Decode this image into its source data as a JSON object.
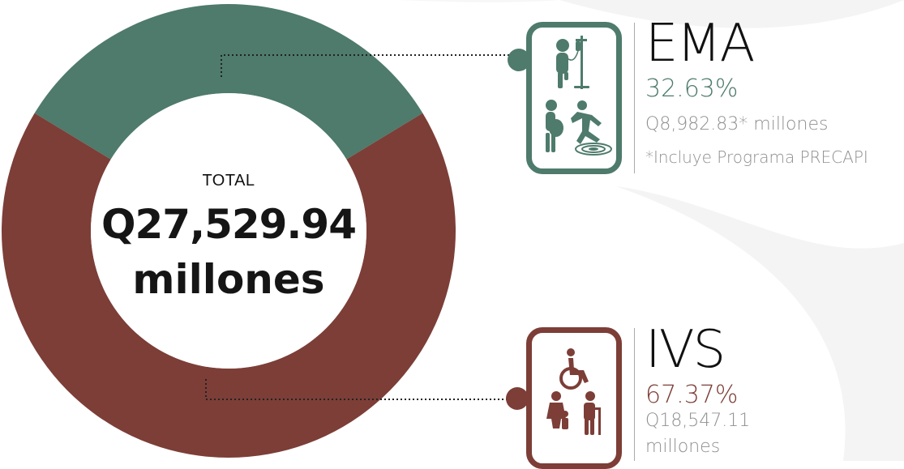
{
  "center": {
    "total_label": "TOTAL",
    "total_value": "Q27,529.94",
    "total_unit": "millones"
  },
  "ema": {
    "title": "EMA",
    "percent": "32.63%",
    "amount": "Q8,982.83* millones",
    "note": "*Incluye Programa PRECAPI",
    "icons": [
      "patient-iv-icon",
      "pregnant-woman-icon",
      "accident-fall-icon"
    ]
  },
  "ivs": {
    "title": "IVS",
    "percent": "67.37%",
    "amount_line1": "Q18,547.11",
    "amount_line2": "millones",
    "icons": [
      "wheelchair-icon",
      "family-icon",
      "elderly-person-icon"
    ]
  },
  "colors": {
    "ema": "#4e7b6b",
    "ivs": "#7c3e37",
    "background_swoosh": "#f4f4f4"
  },
  "chart_data": {
    "type": "pie",
    "categories": [
      "EMA",
      "IVS"
    ],
    "values": [
      32.63,
      67.37
    ],
    "amounts": [
      "Q8,982.83* millones",
      "Q18,547.11 millones"
    ],
    "colors": [
      "#4e7b6b",
      "#7c3e37"
    ],
    "title": "",
    "center_text": "TOTAL Q27,529.94 millones"
  }
}
